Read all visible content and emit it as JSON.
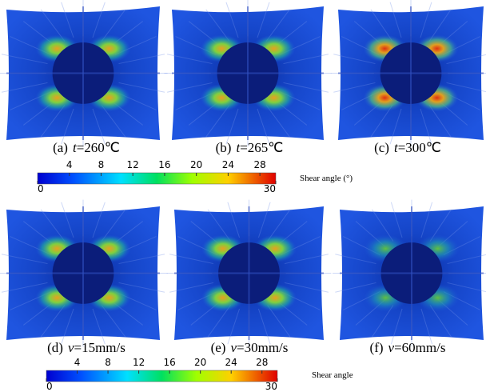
{
  "panels": [
    {
      "label": "(a)",
      "var": "t",
      "value": "=260℃"
    },
    {
      "label": "(b)",
      "var": "t",
      "value": "=265℃"
    },
    {
      "label": "(c)",
      "var": "t",
      "value": "=300℃"
    },
    {
      "label": "(d)",
      "var": "v",
      "value": "=15mm/s"
    },
    {
      "label": "(e)",
      "var": "v",
      "value": "=30mm/s"
    },
    {
      "label": "(f)",
      "var": "v",
      "value": "=60mm/s"
    }
  ],
  "colorbars": [
    {
      "title": "Shear angle (°)",
      "lim": [
        0,
        30
      ],
      "ticks": [
        4,
        8,
        12,
        16,
        20,
        24,
        28
      ]
    },
    {
      "title": "Shear angle",
      "lim": [
        0,
        30
      ],
      "ticks": [
        4,
        8,
        12,
        16,
        20,
        24,
        28
      ]
    }
  ]
}
